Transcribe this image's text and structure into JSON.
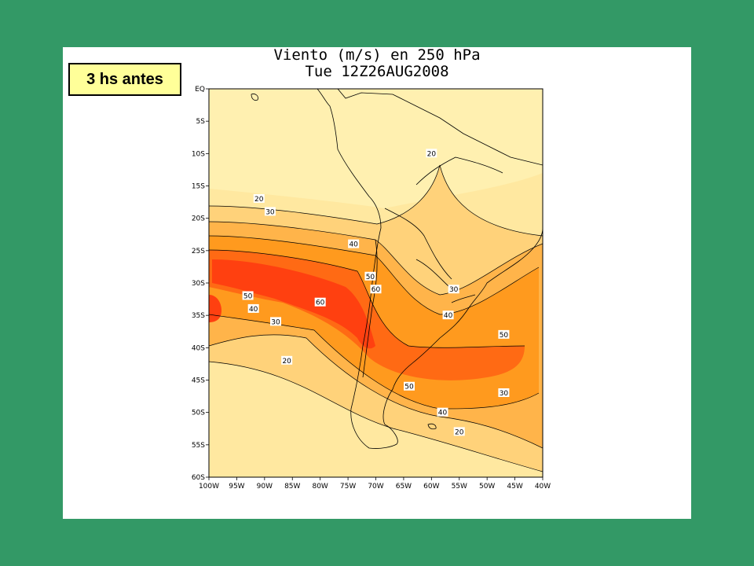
{
  "slide_label": "3 hs antes",
  "map": {
    "title_line1": "Viento (m/s) en 250 hPa",
    "title_line2": "Tue 12Z26AUG2008",
    "lat_labels": [
      "EQ",
      "5S",
      "10S",
      "15S",
      "20S",
      "25S",
      "30S",
      "35S",
      "40S",
      "45S",
      "50S",
      "55S",
      "60S"
    ],
    "lon_labels": [
      "100W",
      "95W",
      "90W",
      "85W",
      "80W",
      "75W",
      "70W",
      "65W",
      "60W",
      "55W",
      "50W",
      "45W",
      "40W"
    ],
    "contour_labels": [
      {
        "text": "20",
        "lon": -60,
        "lat": -10
      },
      {
        "text": "20",
        "lon": -91,
        "lat": -17
      },
      {
        "text": "30",
        "lon": -89,
        "lat": -19
      },
      {
        "text": "40",
        "lon": -74,
        "lat": -24
      },
      {
        "text": "50",
        "lon": -71,
        "lat": -29
      },
      {
        "text": "60",
        "lon": -70,
        "lat": -31
      },
      {
        "text": "30",
        "lon": -56,
        "lat": -31
      },
      {
        "text": "40",
        "lon": -57,
        "lat": -35
      },
      {
        "text": "50",
        "lon": -93,
        "lat": -32
      },
      {
        "text": "60",
        "lon": -80,
        "lat": -33
      },
      {
        "text": "40",
        "lon": -92,
        "lat": -34
      },
      {
        "text": "30",
        "lon": -88,
        "lat": -36
      },
      {
        "text": "20",
        "lon": -86,
        "lat": -42
      },
      {
        "text": "50",
        "lon": -47,
        "lat": -38
      },
      {
        "text": "50",
        "lon": -64,
        "lat": -46
      },
      {
        "text": "30",
        "lon": -47,
        "lat": -47
      },
      {
        "text": "40",
        "lon": -58,
        "lat": -50
      },
      {
        "text": "20",
        "lon": -55,
        "lat": -53
      }
    ],
    "colors": {
      "lt10": "#fff0b0",
      "10_20": "#ffe8a0",
      "20_30": "#ffd27a",
      "30_40": "#ffb44a",
      "40_50": "#ff9a1e",
      "50_60": "#ff6a14",
      "gt60": "#ff4010"
    }
  }
}
